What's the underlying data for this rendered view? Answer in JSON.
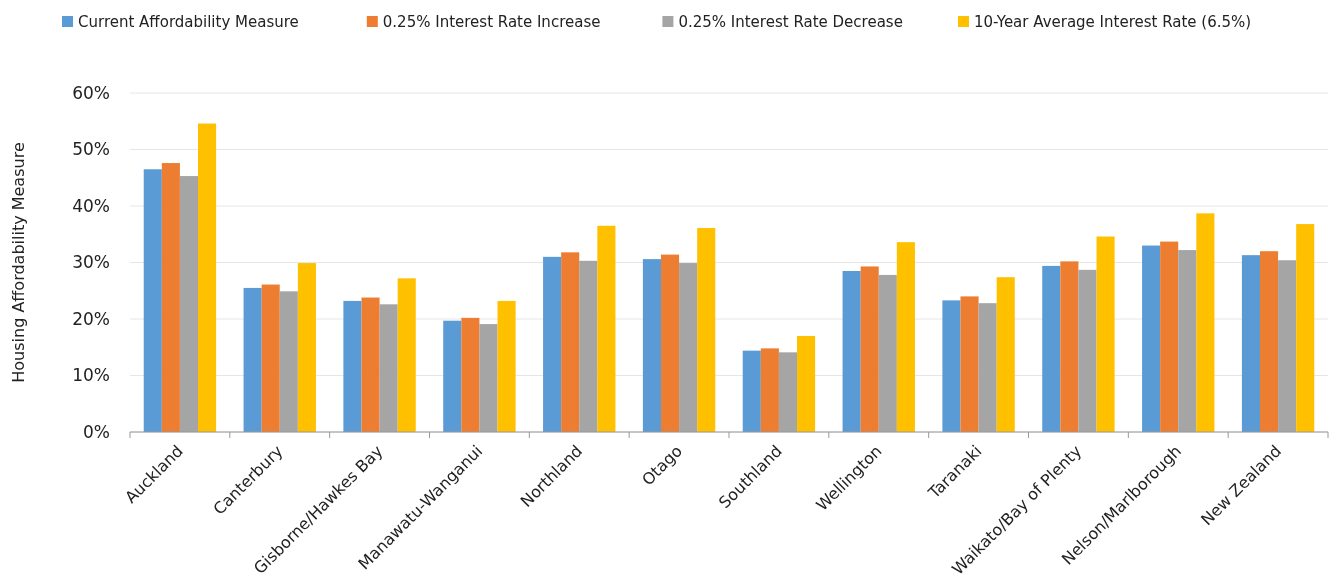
{
  "chart_data": {
    "type": "bar",
    "ylabel": "Housing Affordability Measure",
    "categories": [
      "Auckland",
      "Canterbury",
      "Gisborne/Hawkes Bay",
      "Manawatu-Wanganui",
      "Northland",
      "Otago",
      "Southland",
      "Wellington",
      "Taranaki",
      "Waikato/Bay of Plenty",
      "Nelson/Marlborough",
      "New Zealand"
    ],
    "series": [
      {
        "name": "Current Affordability Measure",
        "color": "#5b9bd5",
        "values": [
          46.5,
          25.5,
          23.2,
          19.7,
          31.0,
          30.6,
          14.4,
          28.5,
          23.3,
          29.4,
          33.0,
          31.3
        ]
      },
      {
        "name": "0.25% Interest Rate Increase",
        "color": "#ed7d31",
        "values": [
          47.6,
          26.1,
          23.8,
          20.2,
          31.8,
          31.4,
          14.8,
          29.3,
          24.0,
          30.2,
          33.7,
          32.0
        ]
      },
      {
        "name": "0.25% Interest Rate Decrease",
        "color": "#a5a5a5",
        "values": [
          45.3,
          24.9,
          22.6,
          19.1,
          30.3,
          29.9,
          14.1,
          27.8,
          22.8,
          28.7,
          32.2,
          30.4
        ]
      },
      {
        "name": "10-Year Average Interest Rate (6.5%)",
        "color": "#ffc000",
        "values": [
          54.6,
          29.9,
          27.2,
          23.2,
          36.5,
          36.1,
          17.0,
          33.6,
          27.4,
          34.6,
          38.7,
          36.8
        ]
      }
    ],
    "ylim": [
      0,
      60
    ],
    "yticks": [
      {
        "value": 0,
        "label": "0%"
      },
      {
        "value": 10,
        "label": "10%"
      },
      {
        "value": 20,
        "label": "20%"
      },
      {
        "value": 30,
        "label": "30%"
      },
      {
        "value": 40,
        "label": "40%"
      },
      {
        "value": 50,
        "label": "50%"
      },
      {
        "value": 60,
        "label": "60%"
      }
    ],
    "grid": "y",
    "legend": "top"
  }
}
